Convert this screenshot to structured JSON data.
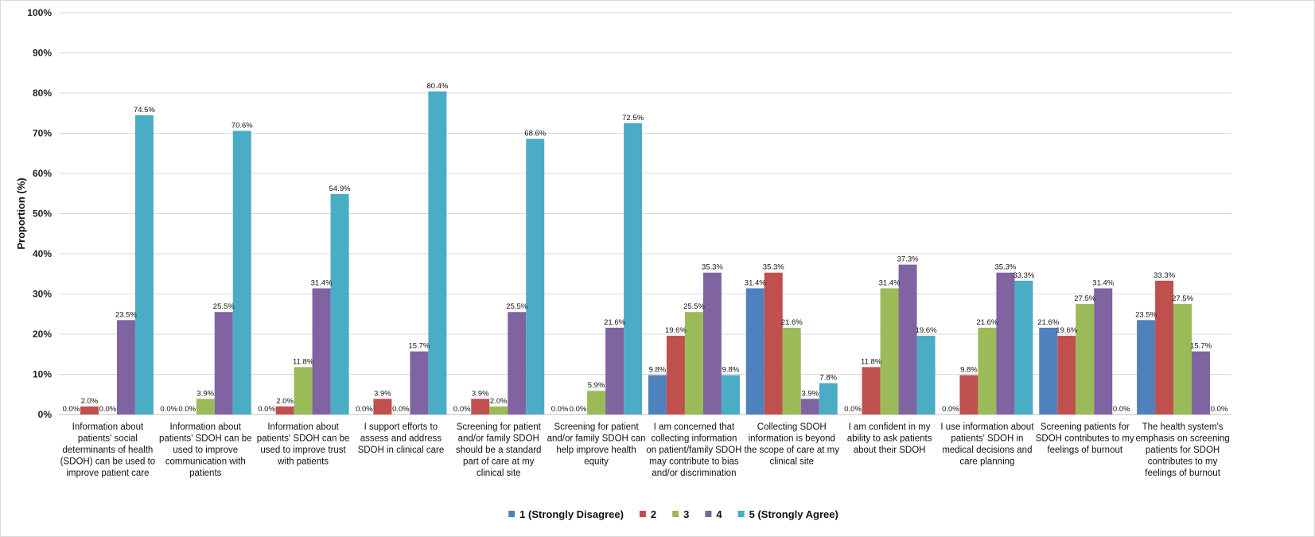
{
  "chart_data": {
    "type": "bar",
    "ylabel": "Proportion (%)",
    "ylim": [
      0,
      100
    ],
    "yticks": [
      "0%",
      "10%",
      "20%",
      "30%",
      "40%",
      "50%",
      "60%",
      "70%",
      "80%",
      "90%",
      "100%"
    ],
    "grid": true,
    "legend_position": "bottom",
    "categories": [
      [
        "Information about",
        "patients' social",
        "determinants of health",
        "(SDOH) can be used to",
        "improve patient care"
      ],
      [
        "Information about",
        "patients' SDOH can be",
        "used to improve",
        "communication with",
        "patients"
      ],
      [
        "Information about",
        "patients' SDOH can be",
        "used to improve trust",
        "with patients"
      ],
      [
        "I support efforts to",
        "assess and address",
        "SDOH in clinical care"
      ],
      [
        "Screening for patient",
        "and/or family SDOH",
        "should be a standard",
        "part of care at my",
        "clinical site"
      ],
      [
        "Screening for patient",
        "and/or family SDOH can",
        "help improve health",
        "equity"
      ],
      [
        "I am concerned that",
        "collecting information",
        "on patient/family SDOH",
        "may contribute to bias",
        "and/or discrimination"
      ],
      [
        "Collecting SDOH",
        "information is beyond",
        "the scope of care at my",
        "clinical site"
      ],
      [
        "I am confident in my",
        "ability to ask patients",
        "about their SDOH"
      ],
      [
        "I use information about",
        "patients' SDOH in",
        "medical decisions and",
        "care planning"
      ],
      [
        "Screening patients for",
        "SDOH contributes to my",
        "feelings of burnout"
      ],
      [
        "The health system's",
        "emphasis on screening",
        "patients for SDOH",
        "contributes to my",
        "feelings of burnout"
      ]
    ],
    "series": [
      {
        "name": "1 (Strongly Disagree)",
        "color": "#4F81BD",
        "values": [
          0.0,
          0.0,
          0.0,
          0.0,
          0.0,
          0.0,
          9.8,
          31.4,
          0.0,
          0.0,
          21.6,
          23.5
        ]
      },
      {
        "name": "2",
        "color": "#C0504D",
        "values": [
          2.0,
          0.0,
          2.0,
          3.9,
          3.9,
          0.0,
          19.6,
          35.3,
          11.8,
          9.8,
          19.6,
          33.3
        ]
      },
      {
        "name": "3",
        "color": "#9BBB59",
        "values": [
          0.0,
          3.9,
          11.8,
          0.0,
          2.0,
          5.9,
          25.5,
          21.6,
          31.4,
          21.6,
          27.5,
          27.5
        ]
      },
      {
        "name": "4",
        "color": "#8064A2",
        "values": [
          23.5,
          25.5,
          31.4,
          15.7,
          25.5,
          21.6,
          35.3,
          3.9,
          37.3,
          35.3,
          31.4,
          15.7
        ]
      },
      {
        "name": "5 (Strongly Agree)",
        "color": "#4BACC6",
        "values": [
          74.5,
          70.6,
          54.9,
          80.4,
          68.6,
          72.5,
          9.8,
          7.8,
          19.6,
          33.3,
          0.0,
          0.0
        ]
      }
    ]
  }
}
